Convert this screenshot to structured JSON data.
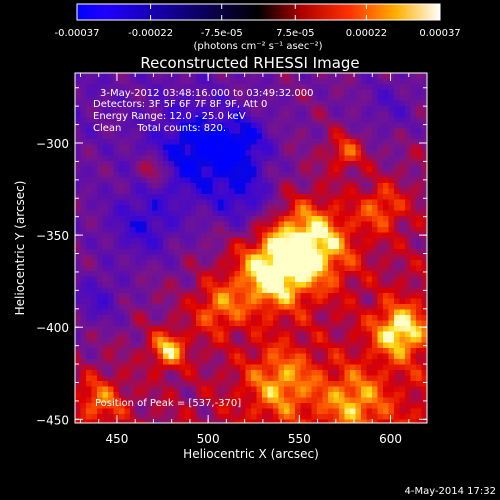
{
  "chart_data": {
    "type": "heatmap",
    "title": "Reconstructed RHESSI Image",
    "xlabel": "Heliocentric X (arcsec)",
    "ylabel": "Heliocentric Y (arcsec)",
    "xlim": [
      427,
      620
    ],
    "ylim": [
      -452,
      -262
    ],
    "x_ticks": [
      450,
      500,
      550,
      600
    ],
    "y_ticks": [
      -450,
      -400,
      -350,
      -300
    ],
    "colorbar": {
      "ticks": [
        "-0.00037",
        "-0.00022",
        "-7.5e-05",
        "7.5e-05",
        "0.00022",
        "0.00037"
      ],
      "tick_values": [
        -0.00037,
        -0.00022,
        -7.5e-05,
        7.5e-05,
        0.00022,
        0.00037
      ],
      "range": [
        -0.00037,
        0.00037
      ],
      "units": "(photons cm⁻² s⁻¹ asec⁻²)"
    },
    "annotations": [
      "3-May-2012 03:48:16.000 to 03:49:32.000",
      "Detectors: 3F 5F 6F 7F 8F 9F, Att 0",
      "Energy Range: 12.0 - 25.0 keV",
      "Clean     Total counts: 820."
    ],
    "peak_label": "Position of Peak = [537,-370]",
    "peak": [
      537,
      -370
    ],
    "hotspots": [
      {
        "x": 555,
        "y": -355,
        "v": 1.0,
        "r": 16
      },
      {
        "x": 533,
        "y": -372,
        "v": 0.85,
        "r": 14
      },
      {
        "x": 605,
        "y": -402,
        "v": 0.85,
        "r": 10
      },
      {
        "x": 478,
        "y": -412,
        "v": 0.8,
        "r": 7
      },
      {
        "x": 470,
        "y": -315,
        "v": 0.6,
        "r": 6
      },
      {
        "x": 440,
        "y": -440,
        "v": 0.55,
        "r": 10
      },
      {
        "x": 540,
        "y": -430,
        "v": 0.6,
        "r": 14
      },
      {
        "x": 575,
        "y": -305,
        "v": 0.55,
        "r": 7
      },
      {
        "x": 595,
        "y": -335,
        "v": 0.5,
        "r": 9
      },
      {
        "x": 505,
        "y": -390,
        "v": 0.55,
        "r": 10
      },
      {
        "x": 580,
        "y": -440,
        "v": 0.55,
        "r": 12
      }
    ],
    "coldspots": [
      {
        "x": 495,
        "y": -305,
        "v": -0.85,
        "r": 18
      },
      {
        "x": 465,
        "y": -345,
        "v": -0.55,
        "r": 14
      },
      {
        "x": 520,
        "y": -330,
        "v": -0.55,
        "r": 12
      },
      {
        "x": 440,
        "y": -385,
        "v": -0.45,
        "r": 10
      },
      {
        "x": 600,
        "y": -280,
        "v": -0.35,
        "r": 12
      },
      {
        "x": 520,
        "y": -300,
        "v": -0.55,
        "r": 10
      }
    ]
  },
  "footer": {
    "date": "4-May-2014 17:32"
  }
}
